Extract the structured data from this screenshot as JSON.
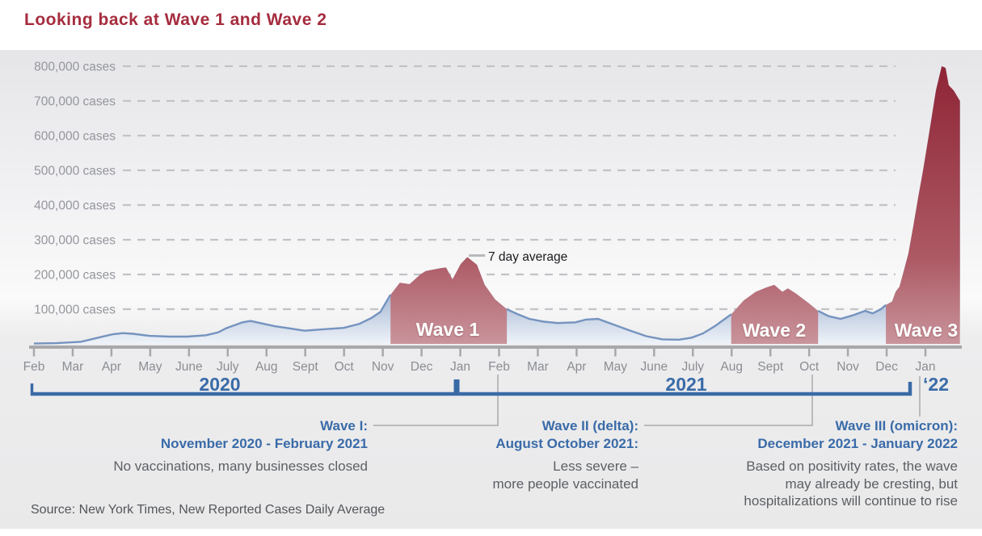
{
  "title": "Looking back at Wave 1 and Wave 2",
  "annotation_7day": "7 day average",
  "source": "Source: New York Times, New Reported Cases Daily Average",
  "years": [
    {
      "label": "2020"
    },
    {
      "label": "2021"
    },
    {
      "label": "‘22"
    }
  ],
  "callouts": [
    {
      "heading": "Wave I:\nNovember 2020 - February 2021",
      "body": "No vaccinations, many businesses closed"
    },
    {
      "heading": "Wave II (delta):\nAugust October 2021:",
      "body": "Less severe –\nmore people vaccinated"
    },
    {
      "heading": "Wave III (omicron):\nDecember 2021 - January 2022",
      "body": "Based on positivity rates, the wave\nmay already be cresting, but\nhospitalizations will continue to rise"
    }
  ],
  "colors": {
    "title_red": "#a52c3e",
    "wave_red_top": "#8e2435",
    "wave_red_mid": "#ad5a65",
    "wave_red_bottom": "#c9949b",
    "blue_area_top": "#7e9cc6",
    "blue_area_mid": "#bccadf",
    "blue_area_bottom": "#eff3f9",
    "blue_stroke": "#7593bf",
    "bracket_blue": "#3a6aa6",
    "grid_gray": "#c2c3c7",
    "axis_gray": "#a8a8ab",
    "ylabel_gray": "#94969c",
    "xlabel_gray": "#8b8d92",
    "connector_gray": "#a9aaad",
    "seven_day_tick": "#b9b9bc"
  },
  "chart_data": {
    "type": "area",
    "title": "Looking back at Wave 1 and Wave 2",
    "xlabel": "",
    "ylabel": "cases",
    "x_unit": "months since Feb 2020",
    "ylim": [
      0,
      800000
    ],
    "grid": "dashed horizontal, on",
    "legend": "none",
    "x_ticks": [
      "Feb",
      "Mar",
      "Apr",
      "May",
      "June",
      "July",
      "Aug",
      "Sept",
      "Oct",
      "Nov",
      "Dec",
      "Jan",
      "Feb",
      "Mar",
      "Apr",
      "May",
      "June",
      "July",
      "Aug",
      "Sept",
      "Oct",
      "Nov",
      "Dec",
      "Jan"
    ],
    "y_tick_labels": [
      "100,000 cases",
      "200,000 cases",
      "300,000 cases",
      "400,000 cases",
      "500,000 cases",
      "600,000 cases",
      "700,000 cases",
      "800,000 cases"
    ],
    "annotation": {
      "text": "7 day average",
      "at_m": 11.18,
      "at_cases": 250000
    },
    "series": [
      {
        "name": "7 day average of new reported cases",
        "points": [
          [
            0,
            1000
          ],
          [
            0.58,
            2000
          ],
          [
            1.21,
            6000
          ],
          [
            2.04,
            28000
          ],
          [
            2.29,
            31000
          ],
          [
            2.56,
            29000
          ],
          [
            2.98,
            23000
          ],
          [
            3.5,
            21000
          ],
          [
            3.96,
            21000
          ],
          [
            4.44,
            25000
          ],
          [
            4.75,
            33000
          ],
          [
            4.96,
            45000
          ],
          [
            5.38,
            62000
          ],
          [
            5.59,
            66000
          ],
          [
            5.8,
            61000
          ],
          [
            6.21,
            51000
          ],
          [
            6.63,
            44000
          ],
          [
            6.98,
            38000
          ],
          [
            7.46,
            42000
          ],
          [
            7.99,
            46000
          ],
          [
            8.4,
            58000
          ],
          [
            8.71,
            75000
          ],
          [
            8.94,
            92000
          ],
          [
            9.19,
            140000
          ],
          [
            9.44,
            176000
          ],
          [
            9.69,
            172000
          ],
          [
            9.97,
            200000
          ],
          [
            10.11,
            210000
          ],
          [
            10.49,
            218000
          ],
          [
            10.63,
            220000
          ],
          [
            10.8,
            186000
          ],
          [
            11.01,
            230000
          ],
          [
            11.18,
            250000
          ],
          [
            11.43,
            228000
          ],
          [
            11.63,
            170000
          ],
          [
            11.9,
            128000
          ],
          [
            12.2,
            100000
          ],
          [
            12.47,
            86000
          ],
          [
            12.78,
            72000
          ],
          [
            13.16,
            64000
          ],
          [
            13.51,
            60000
          ],
          [
            13.97,
            62000
          ],
          [
            14.24,
            70000
          ],
          [
            14.55,
            72000
          ],
          [
            14.97,
            55000
          ],
          [
            15.39,
            38000
          ],
          [
            15.8,
            22000
          ],
          [
            16.22,
            13000
          ],
          [
            16.64,
            12000
          ],
          [
            16.97,
            18000
          ],
          [
            17.26,
            30000
          ],
          [
            17.58,
            52000
          ],
          [
            17.99,
            85000
          ],
          [
            18.31,
            125000
          ],
          [
            18.62,
            150000
          ],
          [
            18.89,
            162000
          ],
          [
            19.1,
            170000
          ],
          [
            19.31,
            150000
          ],
          [
            19.45,
            160000
          ],
          [
            19.66,
            145000
          ],
          [
            19.98,
            118000
          ],
          [
            20.23,
            95000
          ],
          [
            20.5,
            80000
          ],
          [
            20.81,
            72000
          ],
          [
            21.12,
            82000
          ],
          [
            21.44,
            95000
          ],
          [
            21.64,
            88000
          ],
          [
            21.85,
            100000
          ],
          [
            21.98,
            112000
          ],
          [
            22.14,
            122000
          ],
          [
            22.23,
            150000
          ],
          [
            22.33,
            165000
          ],
          [
            22.44,
            210000
          ],
          [
            22.56,
            260000
          ],
          [
            22.69,
            340000
          ],
          [
            22.81,
            420000
          ],
          [
            22.94,
            500000
          ],
          [
            23.1,
            610000
          ],
          [
            23.27,
            730000
          ],
          [
            23.42,
            800000
          ],
          [
            23.52,
            795000
          ],
          [
            23.6,
            745000
          ],
          [
            23.73,
            730000
          ],
          [
            23.89,
            700000
          ]
        ]
      }
    ],
    "wave_windows": [
      {
        "label": "Wave 1",
        "from_m": 9.2,
        "to_m": 12.2,
        "period": "November 2020 - February 2021"
      },
      {
        "label": "Wave 2",
        "from_m": 17.99,
        "to_m": 20.23,
        "period": "August - October 2021"
      },
      {
        "label": "Wave 3",
        "from_m": 21.98,
        "to_m": 23.89,
        "period": "December 2021 - January 2022"
      }
    ],
    "year_spans": [
      {
        "label": "2020",
        "from_m": 0,
        "to_m": 10.95
      },
      {
        "label": "2021",
        "from_m": 10.95,
        "to_m": 22.65
      },
      {
        "label": "‘22",
        "from_m": 22.65,
        "to_m": 23.89
      }
    ]
  }
}
